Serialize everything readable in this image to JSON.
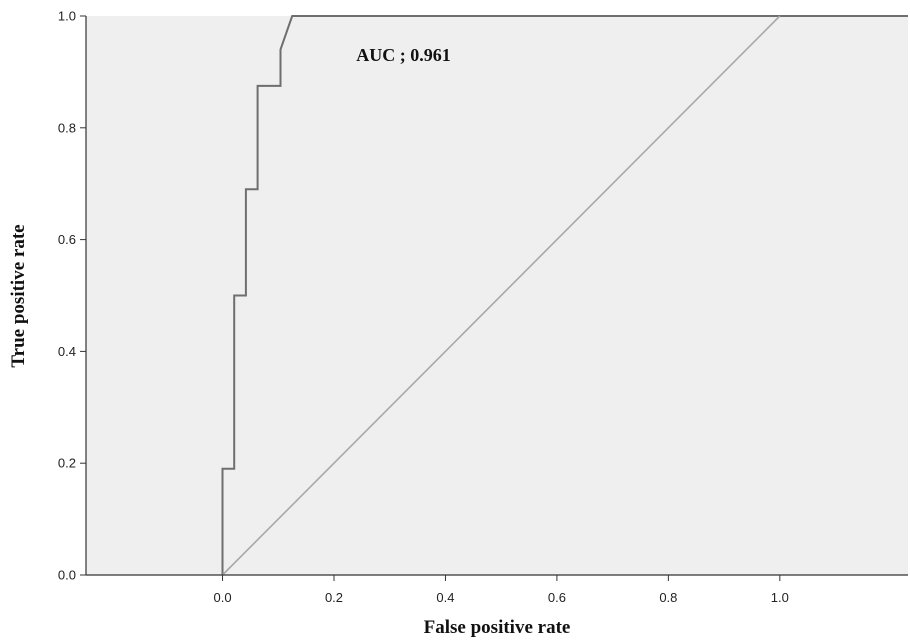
{
  "chart_data": {
    "type": "line",
    "xlabel": "False positive rate",
    "ylabel": "True positive rate",
    "xlim": [
      -0.245,
      1.23
    ],
    "ylim": [
      0,
      1
    ],
    "x_ticks": [
      "0.0",
      "0.2",
      "0.4",
      "0.6",
      "0.8",
      "1.0"
    ],
    "y_ticks": [
      "0.0",
      "0.2",
      "0.4",
      "0.6",
      "0.8",
      "1.0"
    ],
    "grid": false,
    "legend": "none",
    "annotations": [
      {
        "text": "AUC ; 0.961",
        "x": 0.24,
        "y": 0.93
      }
    ],
    "series": [
      {
        "points": [
          [
            0.0,
            0.0
          ],
          [
            0.0,
            0.19
          ],
          [
            0.021,
            0.19
          ],
          [
            0.021,
            0.5
          ],
          [
            0.042,
            0.5
          ],
          [
            0.042,
            0.69
          ],
          [
            0.063,
            0.69
          ],
          [
            0.063,
            0.875
          ],
          [
            0.104,
            0.875
          ],
          [
            0.104,
            0.94
          ],
          [
            0.125,
            1.0
          ],
          [
            1.23,
            1.0
          ]
        ],
        "color": "#6e6e6e"
      },
      {
        "points": [
          [
            0.0,
            0.0
          ],
          [
            1.0,
            1.0
          ]
        ],
        "color": "#a8a8a8"
      }
    ],
    "colors": {
      "plot_background": "#efefef",
      "axis": "#333333"
    }
  }
}
